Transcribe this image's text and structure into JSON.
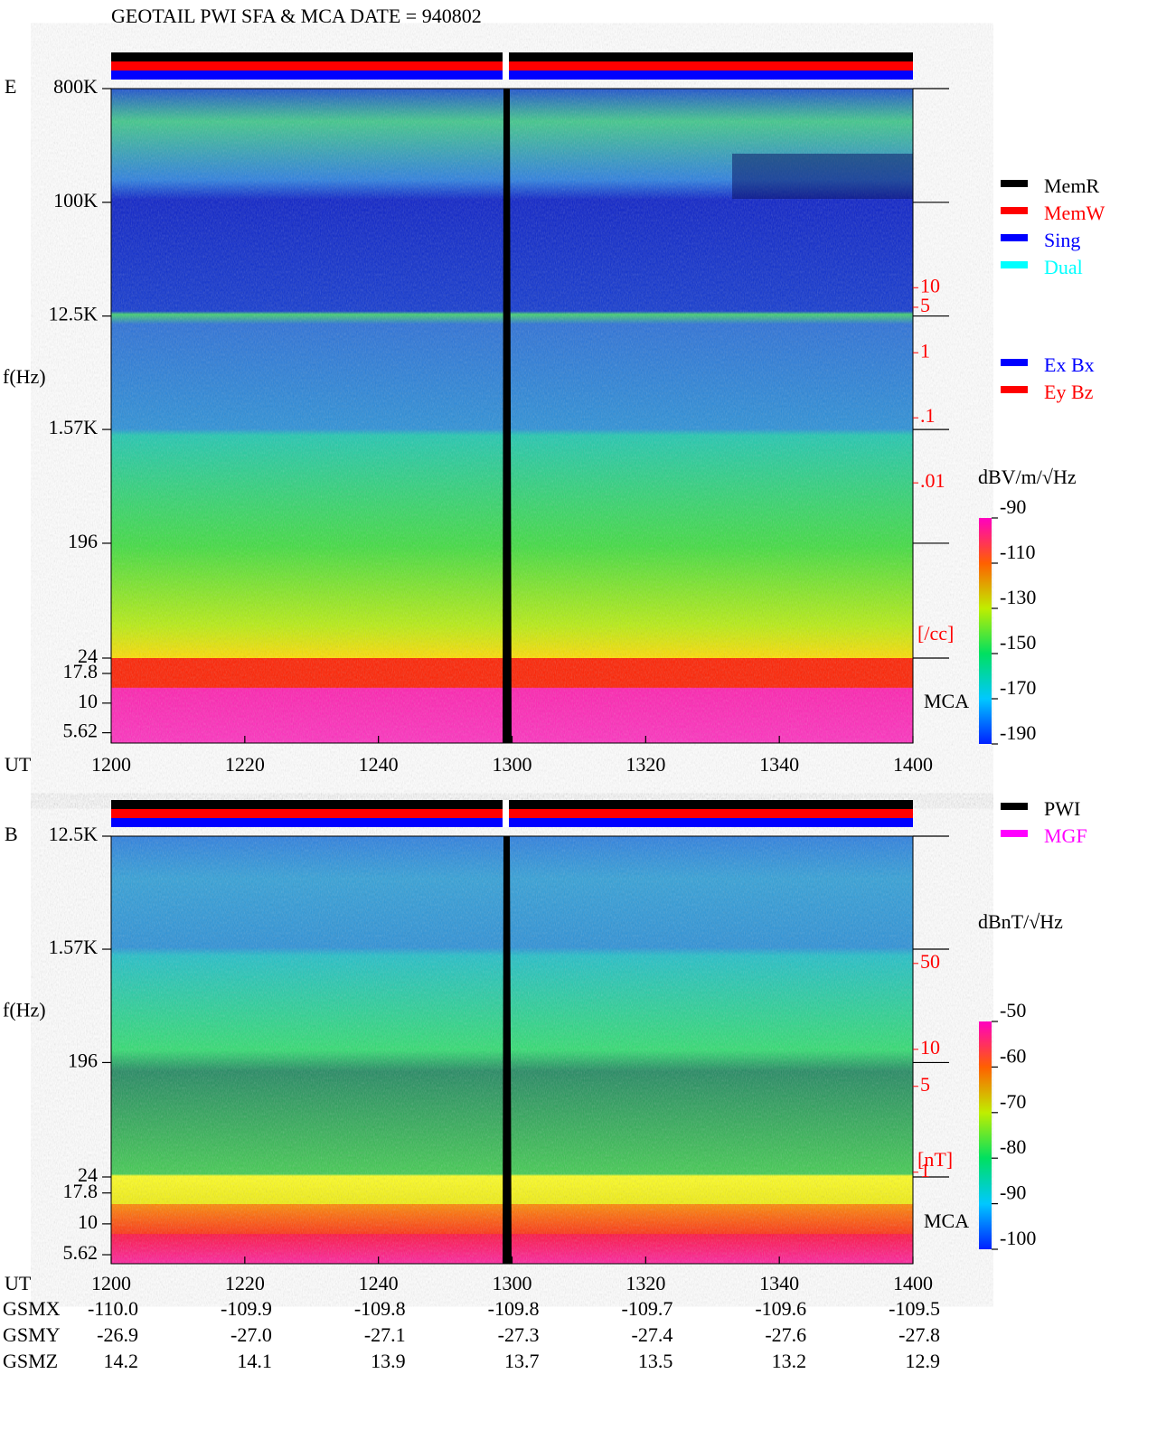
{
  "title": "GEOTAIL  PWI SFA & MCA   DATE = 940802",
  "chart_data": [
    {
      "type": "spectrogram",
      "panel_label": "E",
      "y_label": "f(Hz)",
      "x_label": "UT",
      "x": [
        "1200",
        "1220",
        "1240",
        "1300",
        "1320",
        "1340",
        "1400"
      ],
      "log_scale": true,
      "ylim": [
        4.6,
        800000
      ],
      "yticks": [
        {
          "value": 800000,
          "label": "800K"
        },
        {
          "value": 100000,
          "label": "100K"
        },
        {
          "value": 12500,
          "label": "12.5K"
        },
        {
          "value": 1570,
          "label": "1.57K"
        },
        196,
        24,
        17.8,
        10,
        5.62
      ],
      "mca_label": "MCA",
      "y2lim": [
        1e-06,
        11500
      ],
      "y2ticks": [
        10,
        5,
        1,
        {
          "value": 0.1,
          "label": ".1"
        },
        {
          "value": 0.01,
          "label": ".01"
        }
      ],
      "y2_label": "[/cc]",
      "legend": [
        {
          "name": "MemR",
          "color": "#000000"
        },
        {
          "name": "MemW",
          "color": "#ff0000"
        },
        {
          "name": "Sing",
          "color": "#0000ff"
        },
        {
          "name": "Dual",
          "color": "#00ffff"
        }
      ],
      "legend2": [
        {
          "name": "Ex Bx",
          "color": "#0000ff"
        },
        {
          "name": "Ey Bz",
          "color": "#ff0000"
        }
      ],
      "colorbar": {
        "label": "dBV/m/√Hz",
        "lim": [
          -190,
          -90
        ],
        "ticks": [
          -90,
          -110,
          -130,
          -150,
          -170,
          -190
        ]
      }
    },
    {
      "type": "spectrogram",
      "panel_label": "B",
      "y_label": "f(Hz)",
      "x_label": "UT",
      "x": [
        "1200",
        "1220",
        "1240",
        "1300",
        "1320",
        "1340",
        "1400"
      ],
      "log_scale": true,
      "ylim": [
        4.75,
        12500
      ],
      "yticks": [
        {
          "value": 12500,
          "label": "12.5K"
        },
        {
          "value": 1570,
          "label": "1.57K"
        },
        196,
        24,
        17.8,
        10,
        5.62
      ],
      "mca_label": "MCA",
      "y2lim": [
        0.18,
        543
      ],
      "y2ticks": [
        50,
        10,
        5,
        1
      ],
      "y2_label": "[nT]",
      "legend": [
        {
          "name": "PWI",
          "color": "#000000"
        },
        {
          "name": "MGF",
          "color": "#ff00ff"
        }
      ],
      "colorbar": {
        "label": "dBnT/√Hz",
        "lim": [
          -100,
          -50
        ],
        "ticks": [
          -50,
          -60,
          -70,
          -80,
          -90,
          -100
        ]
      }
    }
  ],
  "orbit": {
    "rows": [
      [
        "GSMX",
        "-110.0",
        "-109.9",
        "-109.8",
        "-109.8",
        "-109.7",
        "-109.6",
        "-109.5"
      ],
      [
        "GSMY",
        "-26.9",
        "-27.0",
        "-27.1",
        "-27.3",
        "-27.4",
        "-27.6",
        "-27.8"
      ],
      [
        "GSMZ",
        "14.2",
        "14.1",
        "13.9",
        "13.7",
        "13.5",
        "13.2",
        "12.9"
      ]
    ]
  }
}
